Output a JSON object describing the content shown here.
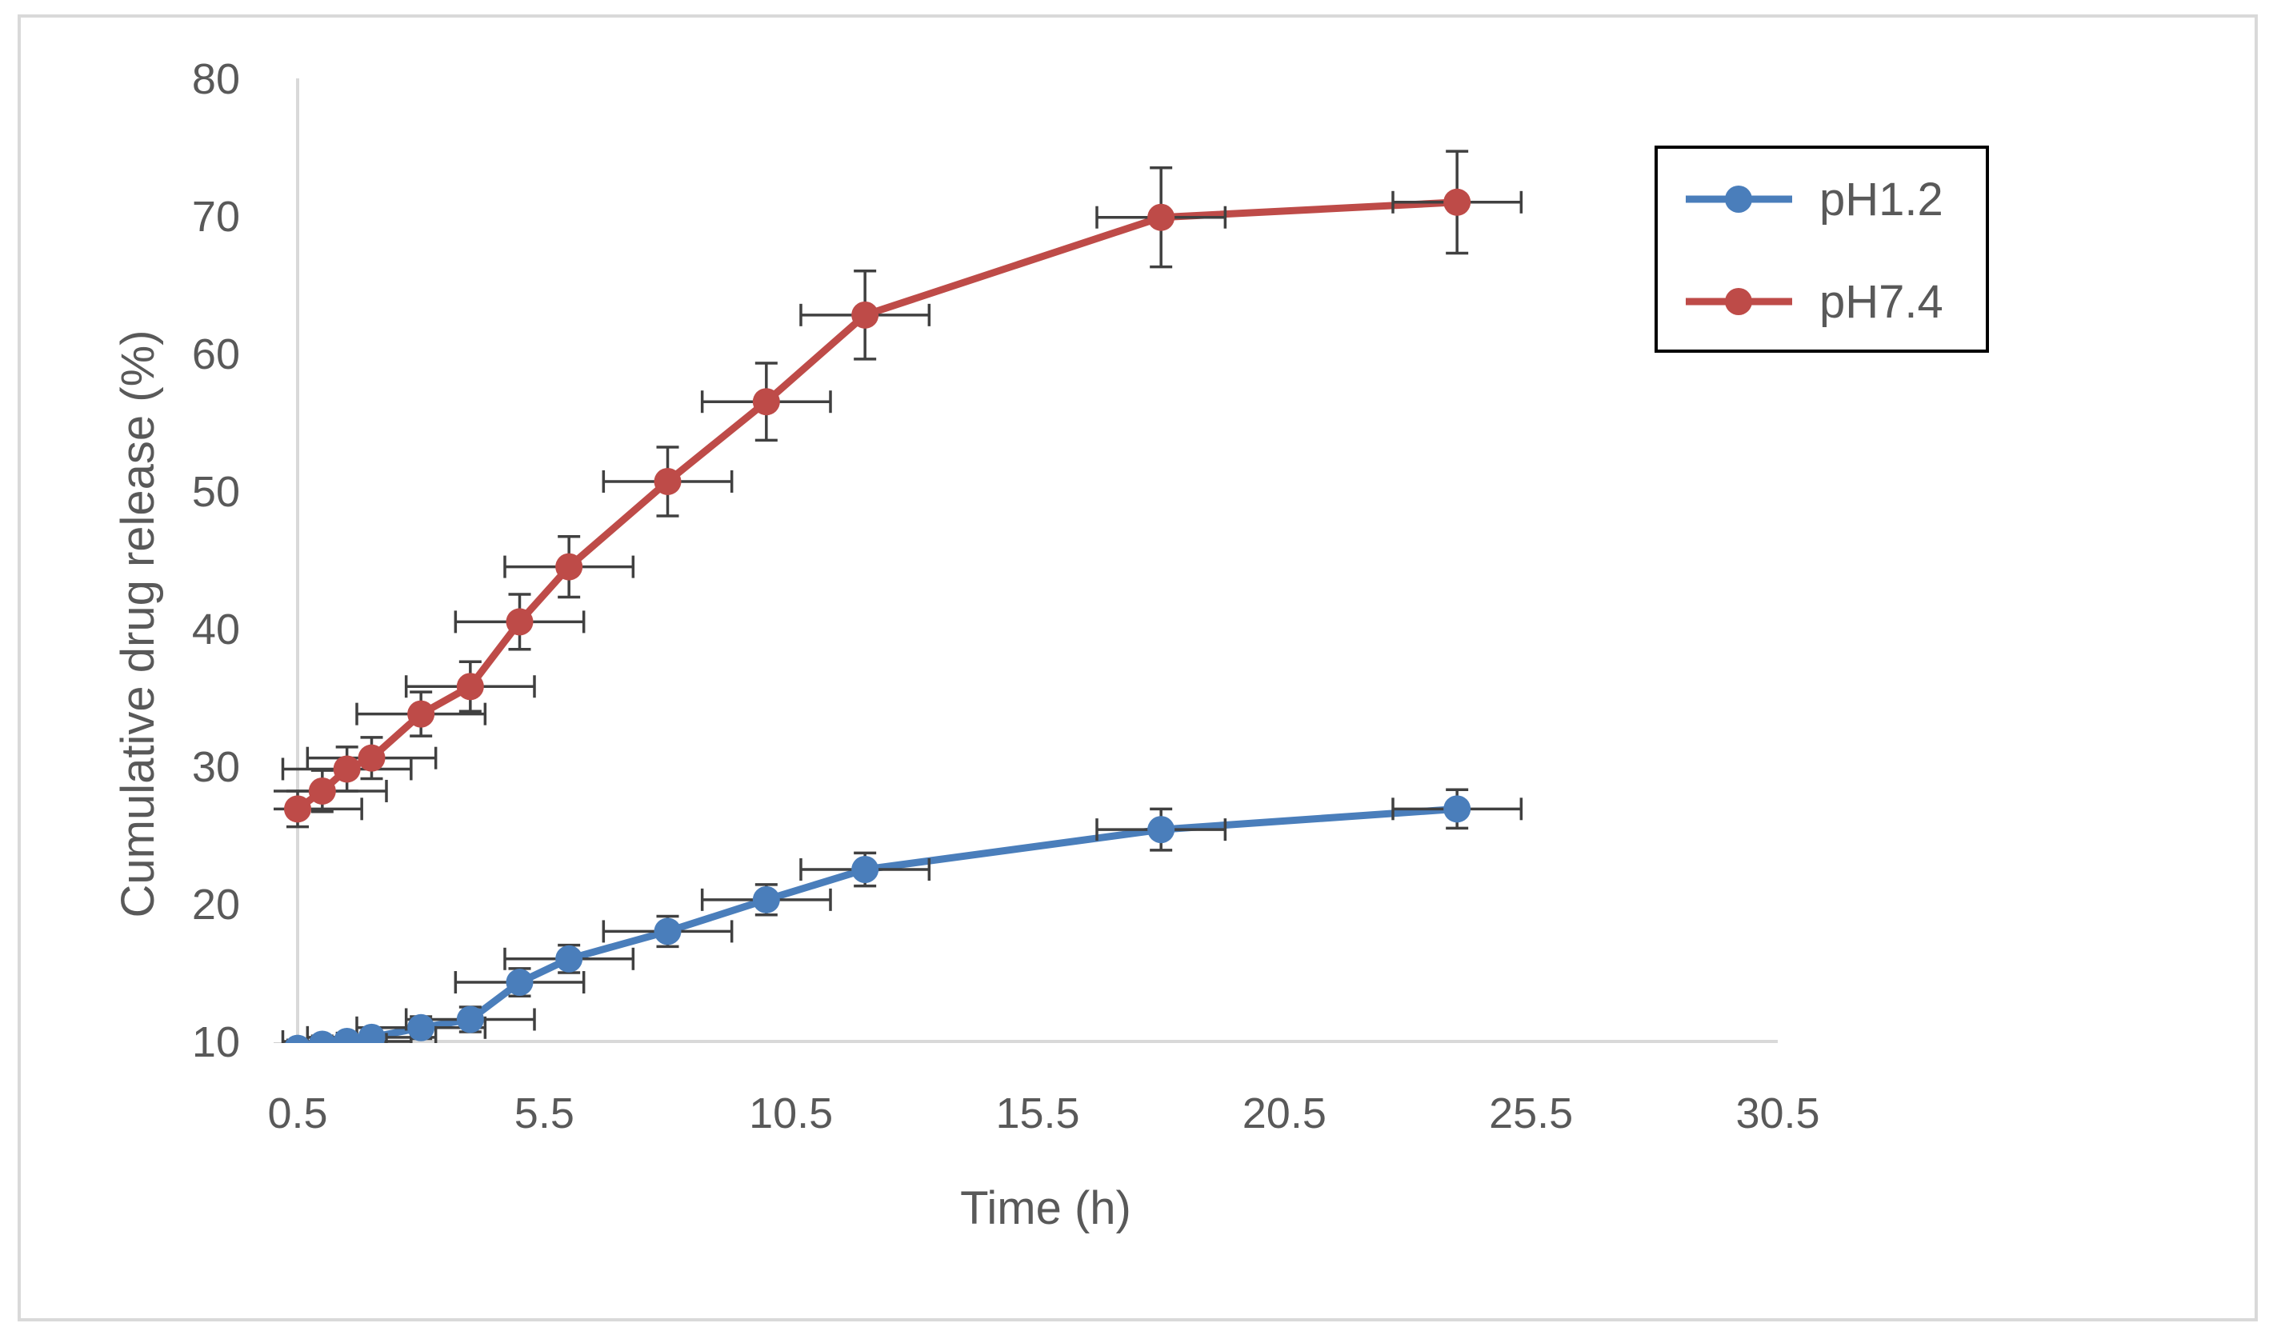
{
  "chart_data": {
    "type": "line",
    "title": "",
    "xlabel": "Time (h)",
    "ylabel": "Cumulative drug release (%)",
    "xlim": [
      0.5,
      30.5
    ],
    "ylim": [
      10,
      80
    ],
    "xticks": [
      "0.5",
      "5.5",
      "10.5",
      "15.5",
      "20.5",
      "25.5",
      "30.5"
    ],
    "yticks": [
      "10",
      "20",
      "30",
      "40",
      "50",
      "60",
      "70",
      "80"
    ],
    "legend_position": "top-right",
    "error_bar_x": 1.3,
    "series": [
      {
        "name": "pH1.2",
        "color": "#4a7ebb",
        "x": [
          0.5,
          1,
          1.5,
          2,
          3,
          4,
          5,
          6,
          8,
          10,
          12,
          18,
          24
        ],
        "y": [
          9.5,
          9.8,
          10.0,
          10.3,
          11.0,
          11.6,
          14.3,
          16.0,
          18.0,
          20.3,
          22.5,
          25.4,
          26.9
        ],
        "yerr": [
          0.6,
          0.6,
          0.6,
          0.7,
          0.8,
          0.9,
          1.0,
          1.0,
          1.1,
          1.1,
          1.2,
          1.5,
          1.4
        ]
      },
      {
        "name": "pH7.4",
        "color": "#be4b48",
        "x": [
          0.5,
          1,
          1.5,
          2,
          3,
          4,
          5,
          6,
          8,
          10,
          12,
          18,
          24
        ],
        "y": [
          26.9,
          28.2,
          29.8,
          30.6,
          33.8,
          35.8,
          40.5,
          44.5,
          50.7,
          56.5,
          62.8,
          69.9,
          71.0
        ],
        "yerr": [
          1.3,
          1.5,
          1.6,
          1.5,
          1.6,
          1.8,
          2.0,
          2.2,
          2.5,
          2.8,
          3.2,
          3.6,
          3.7
        ]
      }
    ]
  }
}
